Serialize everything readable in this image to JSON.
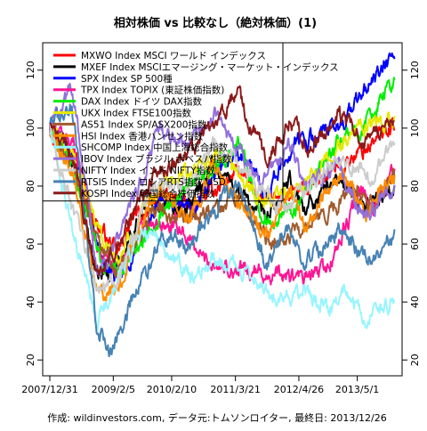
{
  "chart_data": {
    "type": "line",
    "title": "相対株価 vs 比較なし（絶対株価）(1)",
    "caption": "作成: wildinvestors.com, データ元:トムソンロイター, 最終日: 2013/12/26",
    "y_ticks": [
      20,
      40,
      60,
      80,
      100,
      120
    ],
    "ylim": [
      17,
      127
    ],
    "x_ticks": [
      "2007/12/31",
      "2009/2/5",
      "2010/2/10",
      "2011/3/21",
      "2012/4/26",
      "2013/5/1"
    ],
    "xlim": [
      "2007-12-31",
      "2013-12-26"
    ],
    "grid": false,
    "legend_position": "top-left",
    "series": [
      {
        "name": "MXWO Index MSCI ワールド インデックス",
        "color": "#ff0000",
        "points": [
          [
            "2007-12-31",
            100
          ],
          [
            "2008-06-01",
            93
          ],
          [
            "2008-10-15",
            68
          ],
          [
            "2009-03-05",
            56
          ],
          [
            "2009-06-01",
            68
          ],
          [
            "2010-01-01",
            77
          ],
          [
            "2010-06-01",
            72
          ],
          [
            "2011-04-01",
            85
          ],
          [
            "2011-10-01",
            74
          ],
          [
            "2012-06-01",
            78
          ],
          [
            "2013-01-01",
            87
          ],
          [
            "2013-06-01",
            92
          ],
          [
            "2013-12-26",
            102
          ]
        ]
      },
      {
        "name": "MXEF Index MSCIエマージング・マーケット・インデックス",
        "color": "#000000",
        "points": [
          [
            "2007-12-31",
            100
          ],
          [
            "2008-06-01",
            88
          ],
          [
            "2008-10-27",
            48
          ],
          [
            "2009-03-01",
            52
          ],
          [
            "2009-09-01",
            75
          ],
          [
            "2010-06-01",
            73
          ],
          [
            "2010-11-01",
            88
          ],
          [
            "2011-10-01",
            68
          ],
          [
            "2012-03-01",
            81
          ],
          [
            "2012-06-01",
            72
          ],
          [
            "2013-01-01",
            83
          ],
          [
            "2013-06-01",
            73
          ],
          [
            "2013-12-26",
            80
          ]
        ]
      },
      {
        "name": "SPX Index SP 500種",
        "color": "#0000ff",
        "points": [
          [
            "2007-12-31",
            100
          ],
          [
            "2008-06-01",
            90
          ],
          [
            "2008-11-20",
            55
          ],
          [
            "2009-03-09",
            46
          ],
          [
            "2009-12-01",
            75
          ],
          [
            "2010-07-01",
            72
          ],
          [
            "2011-04-01",
            92
          ],
          [
            "2011-10-01",
            78
          ],
          [
            "2012-04-01",
            95
          ],
          [
            "2013-01-01",
            100
          ],
          [
            "2013-06-01",
            112
          ],
          [
            "2013-12-26",
            125
          ]
        ]
      },
      {
        "name": "TPX Index TOPIX (東証株価指数)",
        "color": "#ff1493",
        "points": [
          [
            "2007-12-31",
            100
          ],
          [
            "2008-06-01",
            95
          ],
          [
            "2008-10-28",
            58
          ],
          [
            "2009-03-10",
            52
          ],
          [
            "2009-08-01",
            65
          ],
          [
            "2010-04-01",
            66
          ],
          [
            "2010-09-01",
            55
          ],
          [
            "2011-03-15",
            51
          ],
          [
            "2012-06-01",
            48
          ],
          [
            "2012-11-01",
            52
          ],
          [
            "2013-05-22",
            78
          ],
          [
            "2013-08-01",
            72
          ],
          [
            "2013-12-26",
            86
          ]
        ]
      },
      {
        "name": "DAX Index ドイツ DAX指数",
        "color": "#00ee00",
        "points": [
          [
            "2007-12-31",
            100
          ],
          [
            "2008-06-01",
            85
          ],
          [
            "2008-11-20",
            55
          ],
          [
            "2009-03-06",
            50
          ],
          [
            "2010-01-01",
            73
          ],
          [
            "2011-05-01",
            95
          ],
          [
            "2011-09-15",
            68
          ],
          [
            "2012-06-01",
            75
          ],
          [
            "2013-01-01",
            95
          ],
          [
            "2013-06-01",
            100
          ],
          [
            "2013-12-26",
            117
          ]
        ]
      },
      {
        "name": "UKX Index FTSE100指数",
        "color": "#e8e800",
        "points": [
          [
            "2007-12-31",
            100
          ],
          [
            "2008-06-01",
            90
          ],
          [
            "2008-11-20",
            62
          ],
          [
            "2009-03-03",
            55
          ],
          [
            "2010-01-01",
            82
          ],
          [
            "2011-02-01",
            90
          ],
          [
            "2011-09-01",
            75
          ],
          [
            "2012-06-01",
            80
          ],
          [
            "2013-05-01",
            100
          ],
          [
            "2013-12-26",
            103
          ]
        ]
      },
      {
        "name": "AS51 Index SP/ASX200指数",
        "color": "#a05a2c",
        "points": [
          [
            "2007-12-31",
            100
          ],
          [
            "2008-06-01",
            85
          ],
          [
            "2008-11-20",
            58
          ],
          [
            "2009-03-06",
            52
          ],
          [
            "2009-11-01",
            72
          ],
          [
            "2010-06-01",
            68
          ],
          [
            "2011-04-01",
            75
          ],
          [
            "2011-10-01",
            62
          ],
          [
            "2012-06-01",
            64
          ],
          [
            "2013-05-01",
            80
          ],
          [
            "2013-06-30",
            73
          ],
          [
            "2013-12-26",
            83
          ]
        ]
      },
      {
        "name": "HSI Index 香港ハンセン指数",
        "color": "#ff8c00",
        "points": [
          [
            "2007-12-31",
            100
          ],
          [
            "2008-06-01",
            85
          ],
          [
            "2008-10-27",
            42
          ],
          [
            "2009-03-09",
            45
          ],
          [
            "2009-11-01",
            80
          ],
          [
            "2010-06-01",
            70
          ],
          [
            "2010-11-01",
            87
          ],
          [
            "2011-10-01",
            62
          ],
          [
            "2012-03-01",
            78
          ],
          [
            "2012-06-01",
            66
          ],
          [
            "2013-02-01",
            84
          ],
          [
            "2013-06-20",
            70
          ],
          [
            "2013-12-26",
            85
          ]
        ]
      },
      {
        "name": "SHCOMP Index 中国上海総合指数",
        "color": "#98f5ff",
        "points": [
          [
            "2007-12-31",
            100
          ],
          [
            "2008-06-01",
            62
          ],
          [
            "2008-10-28",
            33
          ],
          [
            "2009-08-04",
            65
          ],
          [
            "2009-12-01",
            60
          ],
          [
            "2010-07-01",
            47
          ],
          [
            "2010-11-01",
            56
          ],
          [
            "2011-06-01",
            50
          ],
          [
            "2012-01-01",
            42
          ],
          [
            "2012-06-01",
            43
          ],
          [
            "2012-12-01",
            37
          ],
          [
            "2013-02-01",
            45
          ],
          [
            "2013-06-25",
            35
          ],
          [
            "2013-12-26",
            40
          ]
        ]
      },
      {
        "name": "IBOV Index ブラジル ボベスパ指数",
        "color": "#9370db",
        "points": [
          [
            "2007-12-31",
            100
          ],
          [
            "2008-05-20",
            115
          ],
          [
            "2008-10-27",
            50
          ],
          [
            "2009-03-01",
            60
          ],
          [
            "2009-12-01",
            100
          ],
          [
            "2010-06-01",
            95
          ],
          [
            "2010-11-01",
            105
          ],
          [
            "2011-09-01",
            80
          ],
          [
            "2012-03-01",
            95
          ],
          [
            "2012-06-01",
            80
          ],
          [
            "2013-01-01",
            87
          ],
          [
            "2013-06-15",
            70
          ],
          [
            "2013-12-26",
            80
          ]
        ]
      },
      {
        "name": "NIFTY Index インド NIFTY指数",
        "color": "#cccccc",
        "points": [
          [
            "2007-12-31",
            100
          ],
          [
            "2008-06-01",
            70
          ],
          [
            "2008-10-27",
            45
          ],
          [
            "2009-03-09",
            47
          ],
          [
            "2009-10-01",
            80
          ],
          [
            "2010-06-01",
            80
          ],
          [
            "2010-11-01",
            95
          ],
          [
            "2011-06-01",
            85
          ],
          [
            "2011-12-20",
            72
          ],
          [
            "2012-06-01",
            78
          ],
          [
            "2013-01-01",
            90
          ],
          [
            "2013-08-28",
            83
          ],
          [
            "2013-12-26",
            97
          ]
        ]
      },
      {
        "name": "RTSIS Index ロシアRTS指数 USD",
        "color": "#4682b4",
        "points": [
          [
            "2007-12-31",
            100
          ],
          [
            "2008-05-19",
            108
          ],
          [
            "2008-10-24",
            30
          ],
          [
            "2009-01-23",
            22
          ],
          [
            "2009-06-01",
            40
          ],
          [
            "2010-01-01",
            62
          ],
          [
            "2010-06-01",
            60
          ],
          [
            "2011-04-08",
            82
          ],
          [
            "2011-10-04",
            52
          ],
          [
            "2012-03-01",
            66
          ],
          [
            "2012-06-01",
            52
          ],
          [
            "2013-01-01",
            65
          ],
          [
            "2013-06-24",
            55
          ],
          [
            "2013-12-26",
            62
          ]
        ]
      },
      {
        "name": "KOSPI Index 韓国総合株価指数",
        "color": "#8b1a1a",
        "points": [
          [
            "2007-12-31",
            100
          ],
          [
            "2008-06-01",
            90
          ],
          [
            "2008-10-24",
            48
          ],
          [
            "2009-03-01",
            60
          ],
          [
            "2009-12-01",
            87
          ],
          [
            "2010-06-01",
            90
          ],
          [
            "2011-04-01",
            113
          ],
          [
            "2011-09-26",
            88
          ],
          [
            "2012-03-01",
            103
          ],
          [
            "2012-07-01",
            94
          ],
          [
            "2013-01-01",
            104
          ],
          [
            "2013-06-25",
            95
          ],
          [
            "2013-12-26",
            102
          ]
        ]
      }
    ]
  }
}
